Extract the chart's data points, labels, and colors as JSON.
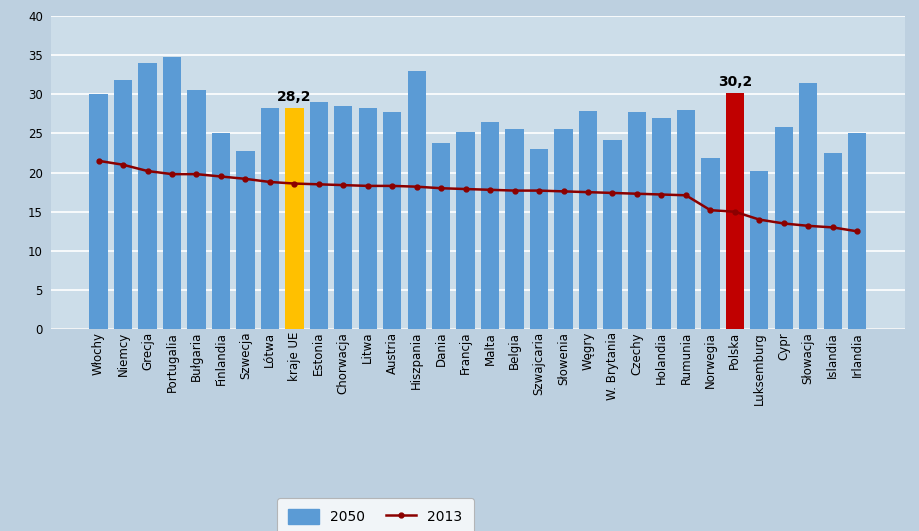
{
  "categories": [
    "Włochy",
    "Niemcy",
    "Grecja",
    "Portugalia",
    "Bułgaria",
    "Finlandia",
    "Szwecja",
    "Lótwa",
    "kraje UE",
    "Estonia",
    "Chorwacja",
    "Litwa",
    "Austria",
    "Hiszpania",
    "Dania",
    "Francja",
    "Malta",
    "Belgia",
    "Szwajcaria",
    "Słowenia",
    "Węgry",
    "W. Brytania",
    "Czechy",
    "Holandia",
    "Rumunia",
    "Norwegia",
    "Polska",
    "Luksemburg",
    "Cypr",
    "Słowacja",
    "Islandia",
    "Irlandia"
  ],
  "bar_values": [
    30.0,
    31.8,
    34.0,
    34.8,
    30.5,
    25.0,
    22.8,
    28.3,
    28.2,
    29.0,
    28.5,
    28.2,
    27.7,
    33.0,
    23.8,
    25.2,
    26.5,
    25.5,
    23.0,
    25.5,
    27.8,
    24.2,
    27.7,
    27.0,
    28.0,
    21.8,
    30.2,
    20.2,
    25.8,
    31.5,
    22.5,
    25.0
  ],
  "bar_colors_special": {
    "8": "#FFC000",
    "26": "#C00000"
  },
  "bar_color_default": "#5B9BD5",
  "line_values": [
    21.5,
    21.0,
    20.2,
    19.8,
    19.8,
    19.5,
    19.2,
    18.8,
    18.6,
    18.5,
    18.4,
    18.3,
    18.3,
    18.2,
    18.0,
    17.9,
    17.8,
    17.7,
    17.7,
    17.6,
    17.5,
    17.4,
    17.3,
    17.2,
    17.1,
    15.2,
    15.0,
    14.0,
    13.5,
    13.2,
    13.0,
    12.5
  ],
  "line_color": "#8B0000",
  "line_marker": "o",
  "line_marker_size": 3.5,
  "line_width": 1.8,
  "label_28_2": "28,2",
  "label_30_2": "30,2",
  "label_28_2_idx": 8,
  "label_30_2_idx": 26,
  "ylim": [
    0,
    40
  ],
  "yticks": [
    0,
    5,
    10,
    15,
    20,
    25,
    30,
    35,
    40
  ],
  "background_color": "#BDD0E0",
  "plot_background_color": "#CCDDE9",
  "grid_color": "#FFFFFF",
  "legend_2050": "2050",
  "legend_2013": "2013",
  "tick_fontsize": 8.5,
  "annotation_fontsize": 10,
  "figwidth": 9.19,
  "figheight": 5.31,
  "dpi": 100
}
